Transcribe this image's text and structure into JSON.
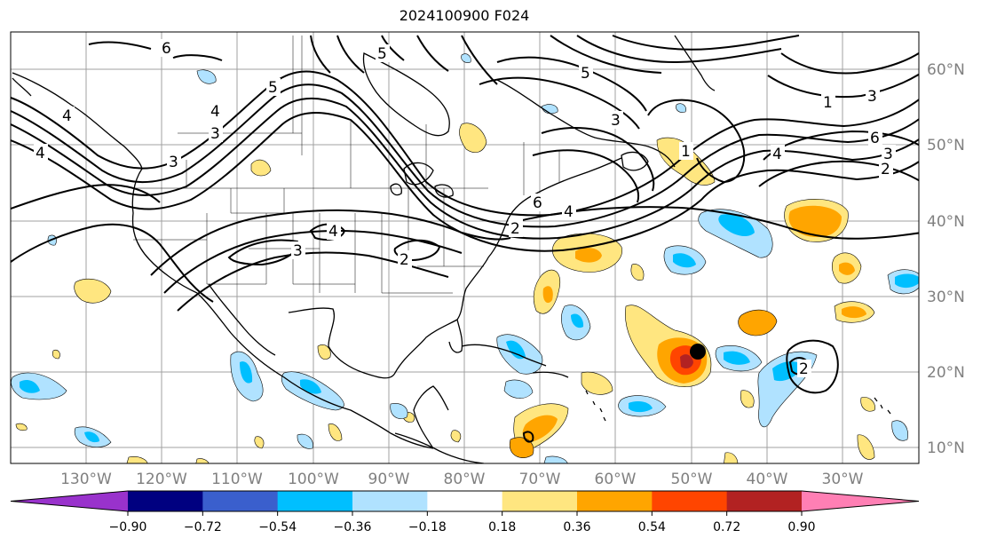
{
  "title": "2024100900 F024",
  "map": {
    "lon_labels": [
      "130°W",
      "120°W",
      "110°W",
      "100°W",
      "90°W",
      "80°W",
      "70°W",
      "60°W",
      "50°W",
      "40°W",
      "30°W"
    ],
    "lat_labels": [
      "60°N",
      "50°N",
      "40°N",
      "30°N",
      "20°N",
      "10°N"
    ],
    "contour_labels": [
      "6",
      "5",
      "4",
      "3",
      "2",
      "1",
      "6",
      "4",
      "3",
      "2",
      "4",
      "3",
      "5",
      "4",
      "6",
      "5",
      "3",
      "2",
      "1",
      "4",
      "3",
      "4",
      "3",
      "2"
    ]
  },
  "colorbar": {
    "ticks": [
      "−0.90",
      "−0.72",
      "−0.54",
      "−0.36",
      "−0.18",
      "0.18",
      "0.36",
      "0.54",
      "0.72",
      "0.90"
    ],
    "colors": [
      "#9932cc",
      "#000080",
      "#3a5fcd",
      "#00bfff",
      "#b0e2ff",
      "#ffffff",
      "#ffe680",
      "#ffa500",
      "#ff4500",
      "#b22222",
      "#ff7fb4"
    ]
  },
  "colors": {
    "ocean": "#ffffff",
    "land_outline": "#000000",
    "grid": "#a0a0a0"
  }
}
